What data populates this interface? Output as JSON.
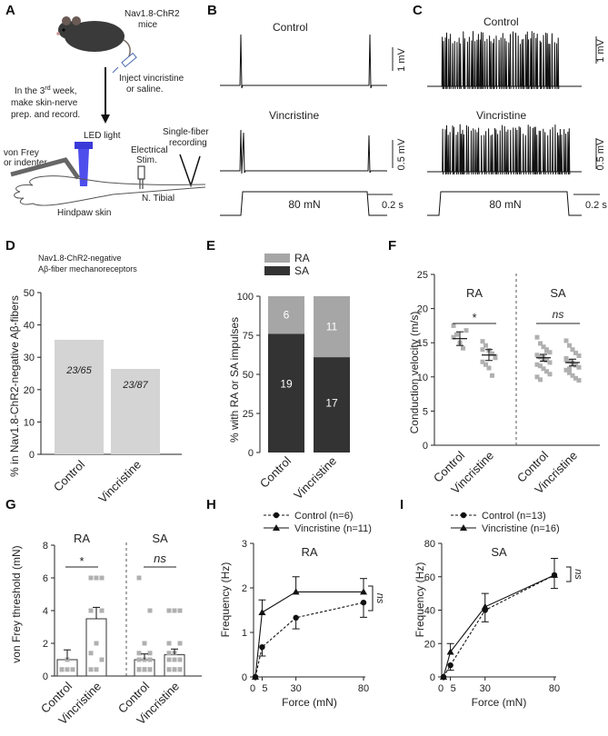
{
  "panel_letters": {
    "A": "A",
    "B": "B",
    "C": "C",
    "D": "D",
    "E": "E",
    "F": "F",
    "G": "G",
    "H": "H",
    "I": "I"
  },
  "panelA": {
    "mouse_label_1": "Nav1.8-ChR2",
    "mouse_label_2": "mice",
    "inject_label_1": "Inject vincristine",
    "inject_label_2": "or saline.",
    "week_line_1_pre": "In the 3",
    "week_line_1_sup": "rd",
    "week_line_1_post": " week,",
    "week_line_2": "make skin-nerve",
    "week_line_3": "prep. and record.",
    "led_label": "LED light",
    "vonfrey_label_1": "von Frey",
    "vonfrey_label_2": "or indenter",
    "elec_label_1": "Electrical",
    "elec_label_2": "Stim.",
    "single_label_1": "Single-fiber",
    "single_label_2": "recording",
    "nerve_label": "N. Tibial",
    "skin_label": "Hindpaw skin"
  },
  "panelB": {
    "control_label": "Control",
    "vincristine_label": "Vincristine",
    "scale_1": "1 mV",
    "scale_2": "0.5 mV",
    "stim_label": "80 mN",
    "time_scale": "0.2 s"
  },
  "panelC": {
    "control_label": "Control",
    "vincristine_label": "Vincristine",
    "scale_1": "1 mV",
    "scale_2": "0.5 mV",
    "stim_label": "80 mN",
    "time_scale": "0.2 s"
  },
  "colors": {
    "bar_light": "#d4d4d4",
    "bar_dark": "#333333",
    "bar_mid": "#a6a6a6",
    "point": "#b0b0b0"
  },
  "chart_data": [
    {
      "id": "D",
      "type": "bar",
      "title_1": "Nav1.8-ChR2-negative",
      "title_2": "Aβ-fiber mechanoreceptors",
      "ylabel": "% in Nav1.8-ChR2-negative Aβ-fibers",
      "categories": [
        "Control",
        "Vincristine"
      ],
      "values": [
        35.4,
        26.4
      ],
      "data_labels": [
        "23/65",
        "23/87"
      ],
      "ylim": [
        0,
        50
      ],
      "yticks": [
        "0",
        "10",
        "20",
        "30",
        "40",
        "50"
      ]
    },
    {
      "id": "E",
      "type": "bar",
      "ylabel": "% with RA or SA impulses",
      "categories": [
        "Control",
        "Vincristine"
      ],
      "legend": [
        "RA",
        "SA"
      ],
      "series": [
        {
          "name": "SA",
          "values": [
            76,
            61
          ],
          "labels": [
            "19",
            "17"
          ]
        },
        {
          "name": "RA",
          "values": [
            24,
            39
          ],
          "labels": [
            "6",
            "11"
          ]
        }
      ],
      "ylim": [
        0,
        100
      ],
      "yticks": [
        "0",
        "25",
        "50",
        "75",
        "100"
      ]
    },
    {
      "id": "F",
      "type": "scatter",
      "ylabel": "Conduction velocity (m/s)",
      "groups": [
        "RA",
        "SA"
      ],
      "categories": [
        "Control",
        "Vincristine",
        "Control",
        "Vincristine"
      ],
      "means": [
        15.6,
        13.2,
        12.8,
        12.1
      ],
      "sems": [
        1.0,
        0.8,
        0.5,
        0.5
      ],
      "points": [
        [
          17.5,
          16.2,
          15.0,
          14.2,
          16.8,
          15.8
        ],
        [
          15.2,
          14.6,
          13.9,
          13.4,
          12.8,
          12.2,
          11.8,
          11.3,
          10.2,
          13.0,
          14.0
        ],
        [
          15.8,
          14.9,
          14.4,
          14.0,
          13.6,
          13.2,
          12.9,
          12.6,
          12.4,
          12.1,
          11.8,
          11.6,
          11.2,
          10.8,
          10.4,
          10.0,
          9.6,
          12.8,
          13.8
        ],
        [
          15.3,
          14.6,
          14.0,
          13.5,
          13.1,
          12.7,
          12.3,
          12.0,
          11.7,
          11.4,
          11.0,
          10.6,
          10.2,
          9.8,
          9.5,
          12.5,
          11.2
        ]
      ],
      "significance": [
        "*",
        "ns"
      ],
      "ylim": [
        0,
        25
      ],
      "yticks": [
        "0",
        "5",
        "10",
        "15",
        "20",
        "25"
      ]
    },
    {
      "id": "G",
      "type": "bar",
      "ylabel": "von Frey threshold (mN)",
      "groups": [
        "RA",
        "SA"
      ],
      "categories": [
        "Control",
        "Vincristine",
        "Control",
        "Vincristine"
      ],
      "values": [
        1.0,
        3.5,
        1.0,
        1.3
      ],
      "sems": [
        0.6,
        0.7,
        0.35,
        0.35
      ],
      "points": [
        [
          0.4,
          0.4,
          0.4,
          0.4,
          1.0
        ],
        [
          0.4,
          0.4,
          1.0,
          1.4,
          2.0,
          4.0,
          4.0,
          6.0,
          6.0,
          6.0,
          6.0
        ],
        [
          0.4,
          0.4,
          0.4,
          0.4,
          0.4,
          0.4,
          0.4,
          0.4,
          1.0,
          1.0,
          1.0,
          1.4,
          1.4,
          2.0,
          4.0,
          6.0
        ],
        [
          0.4,
          0.4,
          0.4,
          0.4,
          0.4,
          0.4,
          1.0,
          1.0,
          1.0,
          1.4,
          1.4,
          2.0,
          2.0,
          4.0,
          4.0,
          4.0
        ]
      ],
      "significance": [
        "*",
        "ns"
      ],
      "ylim": [
        0,
        8
      ],
      "yticks": [
        "0",
        "2",
        "4",
        "6",
        "8"
      ]
    },
    {
      "id": "H",
      "type": "line",
      "title": "RA",
      "xlabel": "Force (mN)",
      "ylabel": "Frequency (Hz)",
      "x": [
        0,
        5,
        30,
        80
      ],
      "xticks": [
        "0",
        "5",
        "30",
        "80"
      ],
      "series": [
        {
          "name": "Control (n=6)",
          "values": [
            0,
            0.67,
            1.33,
            1.67
          ],
          "errors": [
            0,
            0.2,
            0.25,
            0.33
          ]
        },
        {
          "name": "Vincristine (n=11)",
          "values": [
            0,
            1.45,
            1.91,
            1.91
          ],
          "errors": [
            0,
            0.28,
            0.34,
            0.3
          ]
        }
      ],
      "significance": "ns",
      "ylim": [
        0,
        3
      ],
      "yticks": [
        "0",
        "1",
        "2",
        "3"
      ]
    },
    {
      "id": "I",
      "type": "line",
      "title": "SA",
      "xlabel": "Force (mN)",
      "ylabel": "Frequency (Hz)",
      "x": [
        0,
        5,
        30,
        80
      ],
      "xticks": [
        "0",
        "5",
        "30",
        "80"
      ],
      "series": [
        {
          "name": "Control (n=13)",
          "values": [
            0,
            7,
            40,
            61
          ],
          "errors": [
            0,
            3,
            7,
            8
          ]
        },
        {
          "name": "Vincristine (n=16)",
          "values": [
            0,
            15,
            42,
            61
          ],
          "errors": [
            0,
            5,
            8,
            10
          ]
        }
      ],
      "significance": "ns",
      "ylim": [
        0,
        80
      ],
      "yticks": [
        "0",
        "20",
        "40",
        "60",
        "80"
      ]
    }
  ]
}
